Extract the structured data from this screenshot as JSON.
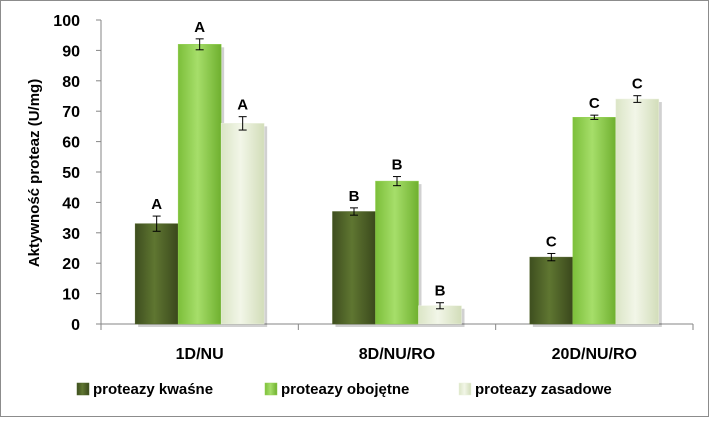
{
  "chart_data": {
    "type": "bar",
    "ylabel": "Aktywność proteaz (U/mg)",
    "xlabel": "",
    "ylim": [
      0,
      100
    ],
    "ytick_step": 10,
    "grid": false,
    "legend_position": "bottom",
    "categories": [
      "1D/NU",
      "8D/NU/RO",
      "20D/NU/RO"
    ],
    "series": [
      {
        "name": "proteazy kwaśne",
        "color": "#4f6228",
        "values": [
          33,
          37,
          22
        ],
        "errors": [
          2.5,
          1.2,
          1.2
        ],
        "labels": [
          "A",
          "B",
          "C"
        ]
      },
      {
        "name": "proteazy obojętne",
        "color": "#92d050",
        "values": [
          92,
          47,
          68
        ],
        "errors": [
          1.8,
          1.5,
          0.7
        ],
        "labels": [
          "A",
          "B",
          "C"
        ]
      },
      {
        "name": "proteazy zasadowe",
        "color": "#ebf1de",
        "values": [
          66,
          6,
          74
        ],
        "errors": [
          2.2,
          1.0,
          1.1
        ],
        "labels": [
          "A",
          "B",
          "C"
        ]
      }
    ]
  }
}
